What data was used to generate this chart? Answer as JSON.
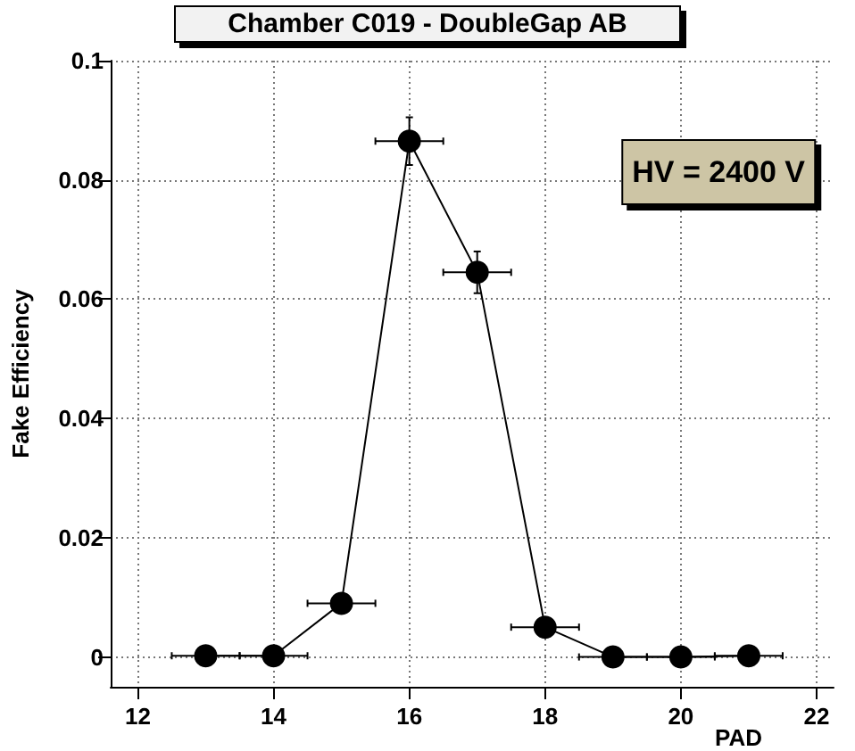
{
  "chart_data": {
    "type": "line",
    "title": "Chamber C019 - DoubleGap AB",
    "xlabel": "PAD",
    "ylabel": "Fake Efficiency",
    "annotations": [
      "HV = 2400 V"
    ],
    "x": [
      13,
      14,
      15,
      16,
      17,
      18,
      19,
      20,
      21
    ],
    "series": [
      {
        "color": "#000000",
        "values": [
          0.0002,
          0.0002,
          0.009,
          0.0865,
          0.0645,
          0.005,
          0,
          0,
          0.0002
        ],
        "errors": [
          0.0002,
          0.0002,
          0.0005,
          0.004,
          0.0035,
          0.001,
          0,
          0,
          0.0002
        ],
        "xerrors": [
          0.5,
          0.5,
          0.5,
          0.5,
          0.5,
          0.5,
          0.5,
          0.5,
          0.5
        ]
      }
    ],
    "xlim": [
      11.6,
      22.25
    ],
    "xticks": [
      12,
      14,
      16,
      18,
      20,
      22
    ],
    "ylim": [
      -0.005,
      0.1
    ],
    "yticks": [
      0,
      0.02,
      0.04,
      0.06,
      0.08,
      0.1
    ],
    "grid": true,
    "marker": "circle",
    "line_style": "solid"
  }
}
